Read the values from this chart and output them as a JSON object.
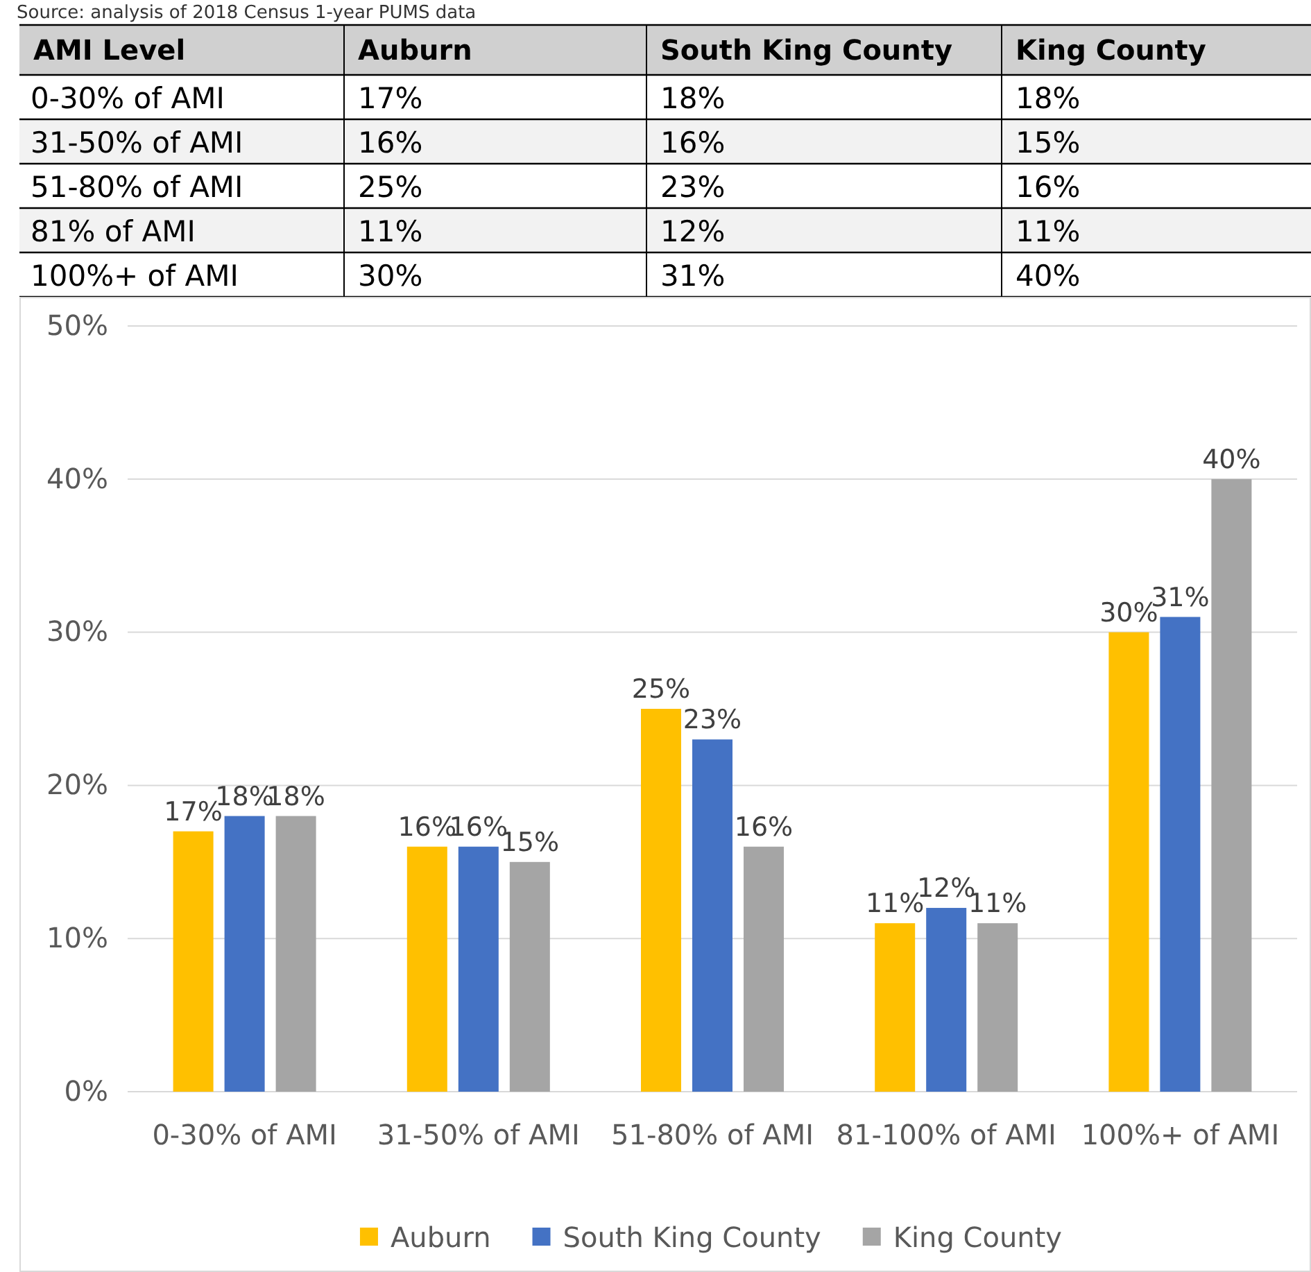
{
  "chart_data": {
    "type": "bar",
    "categories": [
      "0-30% of AMI",
      "31-50% of AMI",
      "51-80% of AMI",
      "81-100% of AMI",
      "100%+ of AMI"
    ],
    "series": [
      {
        "name": "Auburn",
        "color": "#ffc000",
        "values": [
          17,
          16,
          25,
          11,
          30
        ],
        "value_labels": [
          "17%",
          "16%",
          "25%",
          "11%",
          "30%"
        ]
      },
      {
        "name": "South King County",
        "color": "#4472c4",
        "values": [
          18,
          16,
          23,
          12,
          31
        ],
        "value_labels": [
          "18%",
          "16%",
          "23%",
          "12%",
          "31%"
        ]
      },
      {
        "name": "King County",
        "color": "#a5a5a5",
        "values": [
          18,
          15,
          16,
          11,
          40
        ],
        "value_labels": [
          "18%",
          "15%",
          "16%",
          "11%",
          "40%"
        ]
      }
    ],
    "ylim": [
      0,
      50
    ],
    "yticks": [
      {
        "value": 0,
        "label": "0%"
      },
      {
        "value": 10,
        "label": "10%"
      },
      {
        "value": 20,
        "label": "20%"
      },
      {
        "value": 30,
        "label": "30%"
      },
      {
        "value": 40,
        "label": "40%"
      },
      {
        "value": 50,
        "label": "50%"
      }
    ],
    "grid": "y",
    "legend": "bottom",
    "annotations": [
      "Source: analysis of 2018 Census 1-year PUMS data",
      "AMI Level",
      "0-30% of AMI",
      "31-50% of AMI",
      "51-80% of AMI",
      "81% of AMI",
      "100%+ of AMI"
    ]
  }
}
